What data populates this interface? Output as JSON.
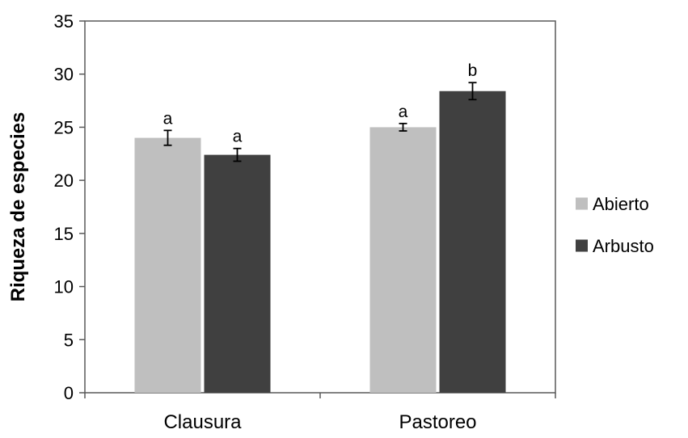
{
  "chart_data": {
    "type": "bar",
    "categories": [
      "Clausura",
      "Pastoreo"
    ],
    "series": [
      {
        "name": "Abierto",
        "color": "#bfbfbf",
        "values": [
          24.0,
          25.0
        ],
        "errors": [
          0.7,
          0.35
        ],
        "significance": [
          "a",
          "a"
        ]
      },
      {
        "name": "Arbusto",
        "color": "#404040",
        "values": [
          22.4,
          28.4
        ],
        "errors": [
          0.6,
          0.8
        ],
        "significance": [
          "a",
          "b"
        ]
      }
    ],
    "ylabel": "Riqueza de especies",
    "ylim": [
      0,
      35
    ],
    "yticks": [
      0,
      5,
      10,
      15,
      20,
      25,
      30,
      35
    ],
    "grid": false,
    "legend_position": "right"
  }
}
